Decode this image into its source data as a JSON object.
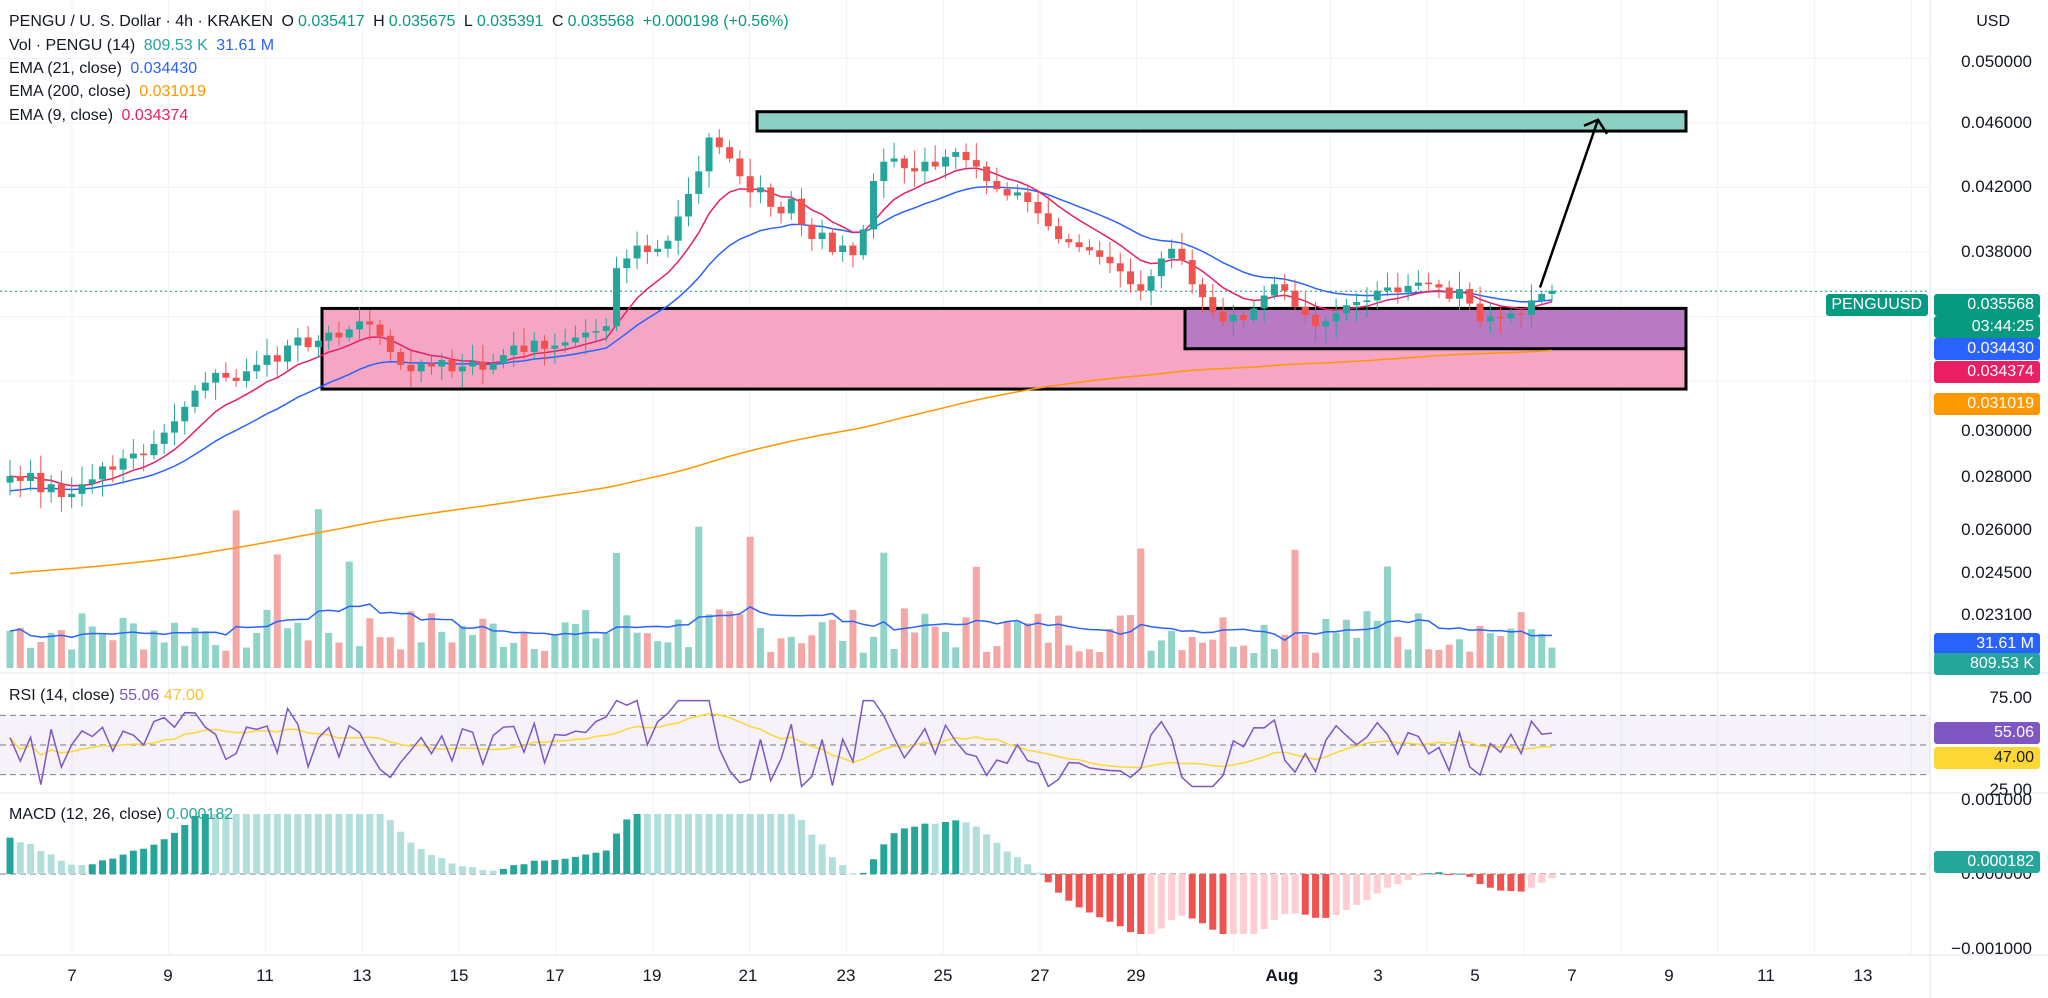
{
  "header": {
    "symbol_line": "PENGU / U. S. Dollar · 4h · KRAKEN",
    "open_label": "O",
    "open": "0.035417",
    "high_label": "H",
    "high": "0.035675",
    "low_label": "L",
    "low": "0.035391",
    "close_label": "C",
    "close": "0.035568",
    "change": "+0.000198 (+0.56%)"
  },
  "indicators": {
    "vol": {
      "label": "Vol · PENGU (14)",
      "v1": "809.53 K",
      "v2": "31.61 M"
    },
    "ema21": {
      "label": "EMA (21, close)",
      "value": "0.034430"
    },
    "ema200": {
      "label": "EMA (200, close)",
      "value": "0.031019"
    },
    "ema9": {
      "label": "EMA (9, close)",
      "value": "0.034374"
    },
    "rsi": {
      "label": "RSI (14, close)",
      "v1": "55.06",
      "v2": "47.00"
    },
    "macd": {
      "label": "MACD (12, 26, close)",
      "value": "0.000182"
    }
  },
  "axis": {
    "currency": "USD",
    "price_ticks": [
      "0.050000",
      "0.046000",
      "0.042000",
      "0.038000",
      "0.030000",
      "0.028000",
      "0.026000",
      "0.024500",
      "0.023100"
    ],
    "rsi_ticks": [
      "75.00",
      "25.00"
    ],
    "macd_ticks": [
      "0.001000",
      "0.000000",
      "−0.001000"
    ],
    "x_ticks": [
      "7",
      "9",
      "11",
      "13",
      "15",
      "17",
      "19",
      "21",
      "23",
      "25",
      "27",
      "29",
      "Aug",
      "3",
      "5",
      "7",
      "9",
      "11",
      "13"
    ]
  },
  "tags": {
    "symbol": "PENGUUSD",
    "price": "0.035568",
    "countdown": "03:44:25",
    "ema21": "0.034430",
    "ema9": "0.034374",
    "ema200": "0.031019",
    "vol_ma": "31.61 M",
    "vol": "809.53 K",
    "rsi": "55.06",
    "rsi_ma": "47.00",
    "macd": "0.000182"
  },
  "colors": {
    "up": "#26a69a",
    "down": "#ef5350",
    "vol_up": "#8fd3c9",
    "vol_down": "#f4a7a5",
    "ema21": "#2962ff",
    "ema200": "#ff9800",
    "ema9": "#e91e63",
    "rsi": "#7e57c2",
    "rsi_ma": "#fdd835",
    "resistance_zone": "#8ccfc3",
    "support_zone": "#f4a6c4",
    "inner_zone": "#b97ac4"
  },
  "chart_data": {
    "type": "candlestick",
    "symbol": "PENGU / U. S. Dollar",
    "timeframe": "4h",
    "exchange": "KRAKEN",
    "last": {
      "open": 0.035417,
      "high": 0.035675,
      "low": 0.035391,
      "close": 0.035568
    },
    "ema21_last": 0.03443,
    "ema200_last": 0.031019,
    "ema9_last": 0.034374,
    "rsi_last": 55.06,
    "rsi_ma_last": 47.0,
    "macd_last": 0.000182,
    "volume_last": "809.53 K",
    "volume_ma_last": "31.61 M",
    "zones": [
      {
        "name": "resistance",
        "from": 0.0455,
        "to": 0.0467
      },
      {
        "name": "support",
        "from": 0.0295,
        "to": 0.0345
      },
      {
        "name": "inner-support",
        "from": 0.032,
        "to": 0.0345
      }
    ],
    "projection": {
      "from": 0.0358,
      "to": 0.0462
    },
    "close_series": [
      0.0241,
      0.0238,
      0.0243,
      0.0231,
      0.0236,
      0.0228,
      0.023,
      0.0236,
      0.0239,
      0.0247,
      0.0245,
      0.0252,
      0.0255,
      0.0254,
      0.0261,
      0.0268,
      0.0275,
      0.0284,
      0.0294,
      0.0299,
      0.0305,
      0.0302,
      0.03,
      0.0306,
      0.031,
      0.0316,
      0.0312,
      0.0322,
      0.0327,
      0.0321,
      0.0325,
      0.033,
      0.0327,
      0.0332,
      0.0337,
      0.0335,
      0.0328,
      0.0318,
      0.031,
      0.0306,
      0.0311,
      0.0309,
      0.0313,
      0.0306,
      0.0309,
      0.0312,
      0.0307,
      0.0311,
      0.0316,
      0.0322,
      0.0318,
      0.0325,
      0.032,
      0.0322,
      0.0324,
      0.0327,
      0.033,
      0.0331,
      0.0334,
      0.037,
      0.0376,
      0.0384,
      0.038,
      0.0382,
      0.0387,
      0.0402,
      0.0416,
      0.043,
      0.0451,
      0.0445,
      0.0438,
      0.0427,
      0.0417,
      0.042,
      0.0408,
      0.0404,
      0.0413,
      0.0397,
      0.0388,
      0.0392,
      0.038,
      0.0384,
      0.0378,
      0.0394,
      0.0424,
      0.0436,
      0.0438,
      0.0432,
      0.043,
      0.0436,
      0.0433,
      0.0439,
      0.0442,
      0.0437,
      0.0433,
      0.0424,
      0.0419,
      0.0415,
      0.0417,
      0.0411,
      0.0404,
      0.0396,
      0.0388,
      0.0386,
      0.0383,
      0.0381,
      0.0377,
      0.0373,
      0.0368,
      0.036,
      0.0356,
      0.0365,
      0.0376,
      0.0382,
      0.0375,
      0.036,
      0.0352,
      0.0343,
      0.0337,
      0.0341,
      0.0338,
      0.0345,
      0.0353,
      0.036,
      0.0356,
      0.0346,
      0.0341,
      0.0334,
      0.0337,
      0.0342,
      0.0347,
      0.0349,
      0.035,
      0.0356,
      0.0358,
      0.0355,
      0.0359,
      0.0361,
      0.036,
      0.0358,
      0.0351,
      0.0357,
      0.0348,
      0.0337,
      0.034,
      0.0339,
      0.0342,
      0.0341,
      0.035,
      0.0354,
      0.0356
    ]
  }
}
